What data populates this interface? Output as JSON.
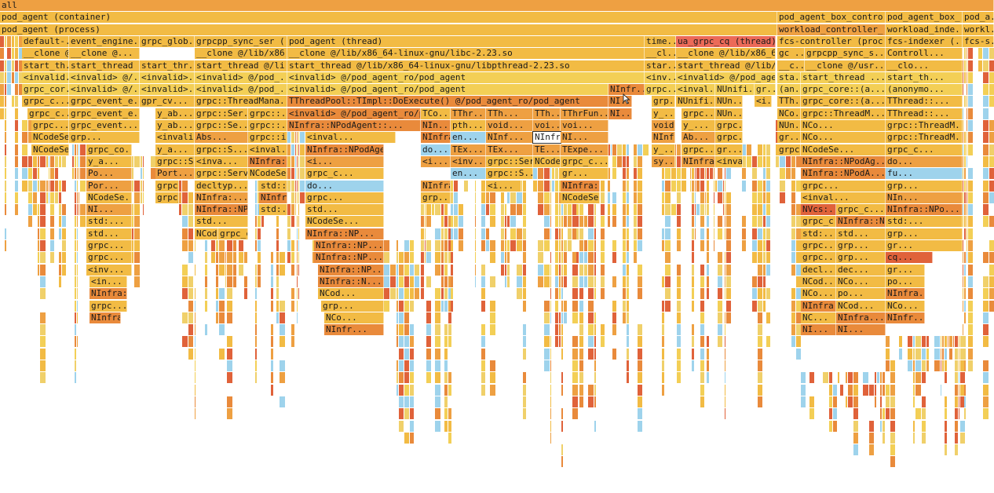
{
  "flamegraph": {
    "colors": {
      "deep_orange": "#e98a3b",
      "orange": "#eea042",
      "gold": "#f2bb44",
      "yellow": "#f3cf56",
      "pale": "#f0d06a",
      "red": "#e0623a",
      "hot": "#ec6a58",
      "blue": "#9ed3ec"
    },
    "hovered_label": "NInfr",
    "frames": [
      {
        "label": "all",
        "c": "orange"
      },
      {
        "label": "pod_agent (container)",
        "c": "gold"
      },
      {
        "label": "pod_agent_box_contro...",
        "c": "gold"
      },
      {
        "label": "pod_agent_box_...",
        "c": "gold"
      },
      {
        "label": "pod_a...",
        "c": "gold"
      },
      {
        "label": "pod_agent (process)",
        "c": "gold"
      },
      {
        "label": "workload_controller_...",
        "c": "orange"
      },
      {
        "label": "workload_inde...",
        "c": "gold"
      },
      {
        "label": "workl...",
        "c": "gold"
      },
      {
        "label": "default-...",
        "c": "gold"
      },
      {
        "label": "event_engine...",
        "c": "gold"
      },
      {
        "label": "grpc_glob...",
        "c": "gold"
      },
      {
        "label": "grpcpp_sync_ser (...",
        "c": "gold"
      },
      {
        "label": "pod_agent (thread)",
        "c": "gold"
      },
      {
        "label": "time...",
        "c": "gold"
      },
      {
        "label": "ua_grpc_cq (thread)",
        "c": "hot"
      },
      {
        "label": "fcs-controller (proc...",
        "c": "gold"
      },
      {
        "label": "fcs-indexer (...",
        "c": "gold"
      },
      {
        "label": "fcs-s...",
        "c": "gold"
      },
      {
        "label": "__clone @/li...",
        "c": "gold"
      },
      {
        "label": "__clone @...",
        "c": "gold"
      },
      {
        "label": "__clone @/lib/x86...",
        "c": "gold"
      },
      {
        "label": "__clone @/lib/x86_64-linux-gnu/libc-2.23.so",
        "c": "gold"
      },
      {
        "label": "__cl...",
        "c": "gold"
      },
      {
        "label": "__clone @/lib/x86_6...",
        "c": "gold"
      },
      {
        "label": "gc ...",
        "c": "gold"
      },
      {
        "label": "grpcpp_sync_s...",
        "c": "gold"
      },
      {
        "label": "Controll...",
        "c": "gold"
      },
      {
        "label": "start_th...",
        "c": "gold"
      },
      {
        "label": "start_thread ...",
        "c": "gold"
      },
      {
        "label": "start_thr...",
        "c": "gold"
      },
      {
        "label": "start_thread @/li...",
        "c": "gold"
      },
      {
        "label": "start_thread @/lib/x86_64-linux-gnu/libpthread-2.23.so",
        "c": "gold"
      },
      {
        "label": "star...",
        "c": "gold"
      },
      {
        "label": "start_thread @/lib/...",
        "c": "gold"
      },
      {
        "label": "__c...",
        "c": "gold"
      },
      {
        "label": "__clone @/usr...",
        "c": "gold"
      },
      {
        "label": "__clo...",
        "c": "gold"
      },
      {
        "label": "<invalid...",
        "c": "yellow"
      },
      {
        "label": "<invalid> @/...",
        "c": "yellow"
      },
      {
        "label": "<invalid>...",
        "c": "yellow"
      },
      {
        "label": "<invalid> @/pod_...",
        "c": "yellow"
      },
      {
        "label": "<invalid> @/pod_agent_ro/pod_agent",
        "c": "yellow"
      },
      {
        "label": "<inv...",
        "c": "yellow"
      },
      {
        "label": "<invalid> @/pod_age...",
        "c": "yellow"
      },
      {
        "label": "sta...",
        "c": "yellow"
      },
      {
        "label": "start_thread ...",
        "c": "yellow"
      },
      {
        "label": "start_th...",
        "c": "yellow"
      },
      {
        "label": "grpc_cor...",
        "c": "yellow"
      },
      {
        "label": "<invalid> @/...",
        "c": "yellow"
      },
      {
        "label": "<invalid>...",
        "c": "yellow"
      },
      {
        "label": "<invalid> @/pod_...",
        "c": "yellow"
      },
      {
        "label": "<invalid> @/pod_agent_ro/pod_agent",
        "c": "yellow"
      },
      {
        "label": "NInfr...",
        "c": "deep_orange"
      },
      {
        "label": "grpc...",
        "c": "yellow"
      },
      {
        "label": "<inval...",
        "c": "yellow"
      },
      {
        "label": "NUnifi...",
        "c": "yellow"
      },
      {
        "label": "gr...",
        "c": "yellow"
      },
      {
        "label": "(an...",
        "c": "yellow"
      },
      {
        "label": "grpc_core::(a...",
        "c": "yellow"
      },
      {
        "label": "(anonymo...",
        "c": "yellow"
      },
      {
        "label": "grpc_c...",
        "c": "gold"
      },
      {
        "label": "grpc_event_e...",
        "c": "gold"
      },
      {
        "label": "gpr_cv...",
        "c": "gold"
      },
      {
        "label": "grpc::ThreadMana...",
        "c": "gold"
      },
      {
        "label": "TThreadPool::TImpl::DoExecute() @/pod_agent_ro/pod_agent",
        "c": "deep_orange"
      },
      {
        "label": "NI...",
        "c": "deep_orange"
      },
      {
        "label": "grp...",
        "c": "gold"
      },
      {
        "label": "NUnifi...",
        "c": "gold"
      },
      {
        "label": "NUn...",
        "c": "gold"
      },
      {
        "label": "<i...",
        "c": "gold"
      },
      {
        "label": "TTh...",
        "c": "gold"
      },
      {
        "label": "grpc_core::(a...",
        "c": "gold"
      },
      {
        "label": "TThread::...",
        "c": "gold"
      },
      {
        "label": "grpc_c...",
        "c": "gold"
      },
      {
        "label": "grpc_event_e...",
        "c": "gold"
      },
      {
        "label": "y_ab...",
        "c": "gold"
      },
      {
        "label": "grpc::Ser...",
        "c": "gold"
      },
      {
        "label": "grpc::...",
        "c": "gold"
      },
      {
        "label": "<invalid> @/pod_agent_ro/p...",
        "c": "deep_orange"
      },
      {
        "label": "TCo...",
        "c": "gold"
      },
      {
        "label": "TThr...",
        "c": "orange"
      },
      {
        "label": "TTh...",
        "c": "orange"
      },
      {
        "label": "TTh...",
        "c": "orange"
      },
      {
        "label": "TThrFun...",
        "c": "orange"
      },
      {
        "label": "NI...",
        "c": "deep_orange"
      },
      {
        "label": "y_...",
        "c": "gold"
      },
      {
        "label": "grpc...",
        "c": "gold"
      },
      {
        "label": "NUn...",
        "c": "gold"
      },
      {
        "label": "NCo...",
        "c": "gold"
      },
      {
        "label": "grpc::ThreadM...",
        "c": "gold"
      },
      {
        "label": "TThread::...",
        "c": "gold"
      },
      {
        "label": "grpc...",
        "c": "gold"
      },
      {
        "label": "grpc_event...",
        "c": "gold"
      },
      {
        "label": "y_ab...",
        "c": "gold"
      },
      {
        "label": "grpc::Se...",
        "c": "gold"
      },
      {
        "label": "grpc::...",
        "c": "gold"
      },
      {
        "label": "NInfra::NPodAgent::...",
        "c": "deep_orange"
      },
      {
        "label": "NIn...",
        "c": "deep_orange"
      },
      {
        "label": "pth...",
        "c": "gold"
      },
      {
        "label": "void...",
        "c": "orange"
      },
      {
        "label": "voi...",
        "c": "orange"
      },
      {
        "label": "voi...",
        "c": "orange"
      },
      {
        "label": "void NT...",
        "c": "orange"
      },
      {
        "label": "y_...",
        "c": "gold"
      },
      {
        "label": "grpc...",
        "c": "gold"
      },
      {
        "label": "NUn...",
        "c": "gold"
      },
      {
        "label": "NCo...",
        "c": "gold"
      },
      {
        "label": "grpc::ThreadM...",
        "c": "gold"
      },
      {
        "label": "NCodeSea...",
        "c": "gold"
      },
      {
        "label": "grp...",
        "c": "gold"
      },
      {
        "label": "<invalid> ...",
        "c": "gold"
      },
      {
        "label": "Abs...",
        "c": "orange"
      },
      {
        "label": "grpc::in...",
        "c": "gold"
      },
      {
        "label": "<inval...",
        "c": "gold"
      },
      {
        "label": "NInfra::NPodAge...",
        "c": "deep_orange"
      },
      {
        "label": "en...",
        "c": "blue"
      },
      {
        "label": "NInf...",
        "c": "orange"
      },
      {
        "label": "NInfr",
        "c": "orange"
      },
      {
        "label": "NI...",
        "c": "orange"
      },
      {
        "label": "NInfra...",
        "c": "orange"
      },
      {
        "label": "Ab...",
        "c": "orange"
      },
      {
        "label": "grpc...",
        "c": "gold"
      },
      {
        "label": "gr...",
        "c": "gold"
      },
      {
        "label": "NCo...",
        "c": "gold"
      },
      {
        "label": "grpc::ThreadM...",
        "c": "gold"
      },
      {
        "label": "NCodeSea...",
        "c": "gold"
      },
      {
        "label": "grpc_co...",
        "c": "gold"
      },
      {
        "label": "y_a...",
        "c": "gold"
      },
      {
        "label": "grpc::S...",
        "c": "gold"
      },
      {
        "label": "<inval...",
        "c": "gold"
      },
      {
        "label": "NInfra::NPodAge...",
        "c": "deep_orange"
      },
      {
        "label": "do...",
        "c": "blue"
      },
      {
        "label": "TEx...",
        "c": "orange"
      },
      {
        "label": "TEx...",
        "c": "orange"
      },
      {
        "label": "TE...",
        "c": "orange"
      },
      {
        "label": "TExpe...",
        "c": "orange"
      },
      {
        "label": "y_...",
        "c": "gold"
      },
      {
        "label": "grpc...",
        "c": "gold"
      },
      {
        "label": "gr...",
        "c": "gold"
      },
      {
        "label": "grpc::Serv...",
        "c": "gold"
      },
      {
        "label": "NCodeSe...",
        "c": "gold"
      },
      {
        "label": "grpc_c...",
        "c": "gold"
      },
      {
        "label": "y_a...",
        "c": "gold"
      },
      {
        "label": "grpc::S...",
        "c": "gold"
      },
      {
        "label": "<inva...",
        "c": "gold"
      },
      {
        "label": "NInfra::NPodAg...",
        "c": "deep_orange"
      },
      {
        "label": "<i...",
        "c": "orange"
      },
      {
        "label": "<i...",
        "c": "orange"
      },
      {
        "label": "<inv...",
        "c": "orange"
      },
      {
        "label": "grpc::Serv...",
        "c": "gold"
      },
      {
        "label": "NCodeSe...",
        "c": "gold"
      },
      {
        "label": "grpc_c...",
        "c": "gold"
      },
      {
        "label": "sy...",
        "c": "orange"
      },
      {
        "label": "NInfra:...",
        "c": "orange"
      },
      {
        "label": "<inva...",
        "c": "gold"
      },
      {
        "label": "NInfra::NPodAg...",
        "c": "deep_orange"
      },
      {
        "label": "do...",
        "c": "orange"
      },
      {
        "label": "Po...",
        "c": "orange"
      },
      {
        "label": "Port...",
        "c": "orange"
      },
      {
        "label": "grpc::Serv...",
        "c": "gold"
      },
      {
        "label": "NCodeSe...",
        "c": "gold"
      },
      {
        "label": "grpc_c...",
        "c": "gold"
      },
      {
        "label": "en...",
        "c": "blue"
      },
      {
        "label": "grpc::S...",
        "c": "gold"
      },
      {
        "label": "gr...",
        "c": "gold"
      },
      {
        "label": "NInfra::NPodA...",
        "c": "deep_orange"
      },
      {
        "label": "fu...",
        "c": "blue"
      },
      {
        "label": "Por...",
        "c": "orange"
      },
      {
        "label": "grpc::Serv...",
        "c": "gold"
      },
      {
        "label": "decltyp...",
        "c": "gold"
      },
      {
        "label": "std::...",
        "c": "gold"
      },
      {
        "label": "do...",
        "c": "blue"
      },
      {
        "label": "NInfra:...",
        "c": "orange"
      },
      {
        "label": "<i...",
        "c": "gold"
      },
      {
        "label": "NInfra::NPodA...",
        "c": "deep_orange"
      },
      {
        "label": "grpc...",
        "c": "gold"
      },
      {
        "label": "grp...",
        "c": "gold"
      },
      {
        "label": "NCodeSe...",
        "c": "gold"
      },
      {
        "label": "grpc_c...",
        "c": "gold"
      },
      {
        "label": "NInfra:...",
        "c": "orange"
      },
      {
        "label": "NInfra::NPodA...",
        "c": "deep_orange"
      },
      {
        "label": "grpc...",
        "c": "gold"
      },
      {
        "label": "grp...",
        "c": "gold"
      },
      {
        "label": "NCodeSe...",
        "c": "gold"
      },
      {
        "label": "<inval...",
        "c": "gold"
      },
      {
        "label": "NIn...",
        "c": "orange"
      },
      {
        "label": "NI...",
        "c": "orange"
      },
      {
        "label": "NInfra::NPodA...",
        "c": "deep_orange"
      },
      {
        "label": "std:...",
        "c": "gold"
      },
      {
        "label": "std...",
        "c": "gold"
      },
      {
        "label": "NVcs:...",
        "c": "red"
      },
      {
        "label": "grpc_c...",
        "c": "gold"
      },
      {
        "label": "NInfra::NPo...",
        "c": "deep_orange"
      },
      {
        "label": "std:...",
        "c": "gold"
      },
      {
        "label": "std...",
        "c": "gold"
      },
      {
        "label": "NCodeSe...",
        "c": "gold"
      },
      {
        "label": "grpc_c...",
        "c": "gold"
      },
      {
        "label": "NInfra::NPo...",
        "c": "deep_orange"
      },
      {
        "label": "std:...",
        "c": "gold"
      },
      {
        "label": "std...",
        "c": "gold"
      },
      {
        "label": "NCodeS...",
        "c": "gold"
      },
      {
        "label": "grpc_c...",
        "c": "gold"
      },
      {
        "label": "NInfra::NP...",
        "c": "deep_orange"
      },
      {
        "label": "std:...",
        "c": "gold"
      },
      {
        "label": "std...",
        "c": "gold"
      },
      {
        "label": "grp...",
        "c": "gold"
      },
      {
        "label": "grpc...",
        "c": "gold"
      },
      {
        "label": "NInfra::NP...",
        "c": "deep_orange"
      },
      {
        "label": "grpc...",
        "c": "gold"
      },
      {
        "label": "grp...",
        "c": "gold"
      },
      {
        "label": "gr...",
        "c": "gold"
      },
      {
        "label": "grpc...",
        "c": "gold"
      },
      {
        "label": "NInfra::NP...",
        "c": "deep_orange"
      },
      {
        "label": "grpc...",
        "c": "gold"
      },
      {
        "label": "grp...",
        "c": "gold"
      },
      {
        "label": "cq...",
        "c": "red"
      },
      {
        "label": "<inv...",
        "c": "gold"
      },
      {
        "label": "NInfra::NP...",
        "c": "deep_orange"
      },
      {
        "label": "decl...",
        "c": "gold"
      },
      {
        "label": "dec...",
        "c": "gold"
      },
      {
        "label": "gr...",
        "c": "gold"
      },
      {
        "label": "<in...",
        "c": "gold"
      },
      {
        "label": "NInfra::N...",
        "c": "deep_orange"
      },
      {
        "label": "NCod...",
        "c": "gold"
      },
      {
        "label": "NCo...",
        "c": "gold"
      },
      {
        "label": "po...",
        "c": "gold"
      },
      {
        "label": "NInfra::N...",
        "c": "deep_orange"
      },
      {
        "label": "NCod...",
        "c": "gold"
      },
      {
        "label": "NCo...",
        "c": "gold"
      },
      {
        "label": "po...",
        "c": "gold"
      },
      {
        "label": "NInfra...",
        "c": "deep_orange"
      },
      {
        "label": "grpc...",
        "c": "gold"
      },
      {
        "label": "grp...",
        "c": "gold"
      },
      {
        "label": "NInfra...",
        "c": "deep_orange"
      },
      {
        "label": "NCod...",
        "c": "gold"
      },
      {
        "label": "NCo...",
        "c": "gold"
      },
      {
        "label": "NInfra...",
        "c": "deep_orange"
      },
      {
        "label": "NCo...",
        "c": "gold"
      },
      {
        "label": "NC...",
        "c": "gold"
      },
      {
        "label": "NInfra...",
        "c": "deep_orange"
      },
      {
        "label": "NInfr...",
        "c": "deep_orange"
      },
      {
        "label": "NInfr...",
        "c": "deep_orange"
      },
      {
        "label": "NI...",
        "c": "deep_orange"
      },
      {
        "label": "NI...",
        "c": "deep_orange"
      }
    ]
  }
}
